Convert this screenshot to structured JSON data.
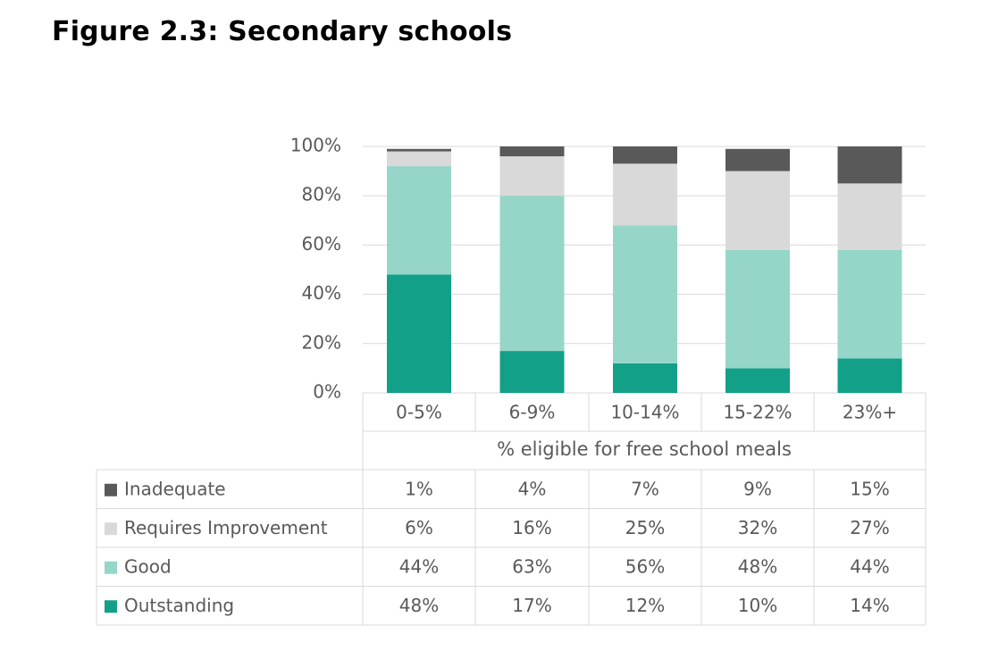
{
  "figure_title": "Figure 2.3: Secondary schools",
  "chart_data": {
    "type": "bar",
    "stacked": true,
    "categories": [
      "0-5%",
      "6-9%",
      "10-14%",
      "15-22%",
      "23%+"
    ],
    "xlabel": "% eligible for free school meals",
    "ylabel": "",
    "ylim": [
      0,
      100
    ],
    "yticks": [
      "0%",
      "20%",
      "40%",
      "60%",
      "80%",
      "100%"
    ],
    "grid": true,
    "legend": "data table",
    "series": [
      {
        "name": "Outstanding",
        "color": "#13a089",
        "values": [
          48,
          17,
          12,
          10,
          14
        ],
        "labels": [
          "48%",
          "17%",
          "12%",
          "10%",
          "14%"
        ]
      },
      {
        "name": "Good",
        "color": "#96d6c9",
        "values": [
          44,
          63,
          56,
          48,
          44
        ],
        "labels": [
          "44%",
          "63%",
          "56%",
          "48%",
          "44%"
        ]
      },
      {
        "name": "Requires Improvement",
        "color": "#d9d9d9",
        "values": [
          6,
          16,
          25,
          32,
          27
        ],
        "labels": [
          "6%",
          "16%",
          "25%",
          "32%",
          "27%"
        ]
      },
      {
        "name": "Inadequate",
        "color": "#595959",
        "values": [
          1,
          4,
          7,
          9,
          15
        ],
        "labels": [
          "1%",
          "4%",
          "7%",
          "9%",
          "15%"
        ]
      }
    ],
    "table_row_order": [
      "Inadequate",
      "Requires Improvement",
      "Good",
      "Outstanding"
    ]
  }
}
